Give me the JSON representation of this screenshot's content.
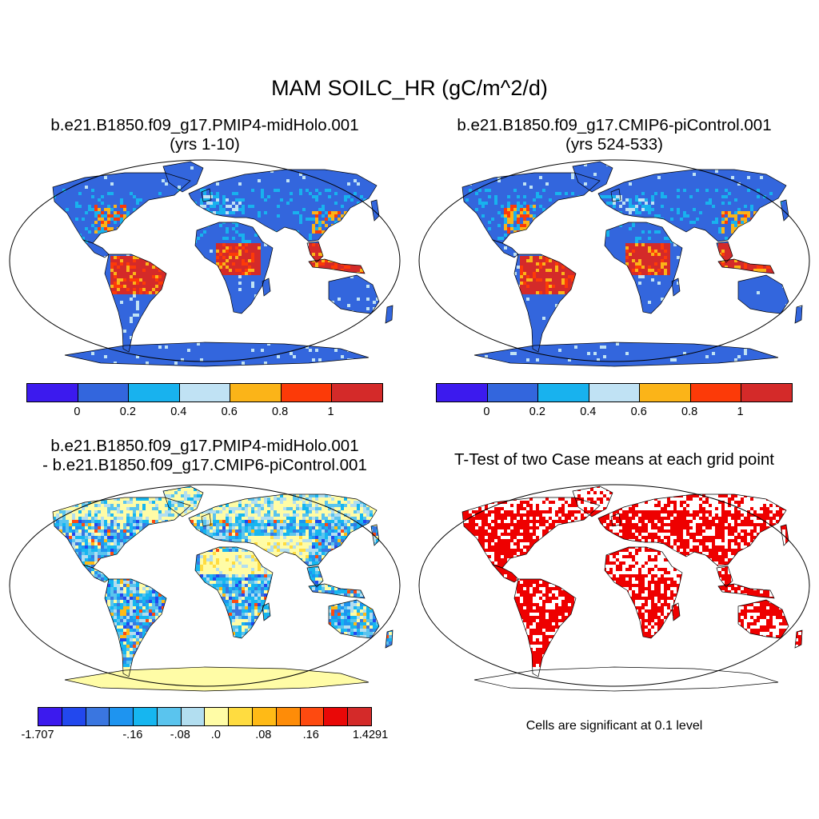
{
  "main_title": "MAM SOILC_HR (gC/m^2/d)",
  "panels": {
    "p1": {
      "line1": "b.e21.B1850.f09_g17.PMIP4-midHolo.001",
      "line2": "(yrs 1-10)"
    },
    "p2": {
      "line1": "b.e21.B1850.f09_g17.CMIP6-piControl.001",
      "line2": "(yrs 524-533)"
    },
    "p3": {
      "line1": "b.e21.B1850.f09_g17.PMIP4-midHolo.001",
      "line2": "- b.e21.B1850.f09_g17.CMIP6-piControl.001"
    },
    "p4": {
      "line1": "T-Test of two Case means at each grid point",
      "note": "Cells are significant at 0.1 level"
    }
  },
  "colorbars": {
    "mean": {
      "colors": [
        "#3c1aee",
        "#3366dd",
        "#18b2ee",
        "#c0e2f4",
        "#fbb418",
        "#fc3a08",
        "#d42a29"
      ],
      "labels": [
        "0",
        "0.2",
        "0.4",
        "0.6",
        "0.8",
        "1"
      ]
    },
    "diff": {
      "colors": [
        "#3c1aee",
        "#2248ee",
        "#3a76e0",
        "#1e94f0",
        "#16b6f0",
        "#5ac4ee",
        "#b2def0",
        "#fffca6",
        "#ffdc40",
        "#ffba16",
        "#fe8c08",
        "#fe4a10",
        "#e90807",
        "#d42a29"
      ],
      "labels": [
        "-1.707",
        "-.16",
        "-.08",
        ".0",
        ".08",
        ".16",
        "1.4291"
      ]
    },
    "signif_color": "#ee0000",
    "land_base_mean": "#3366dd",
    "land_base_diff": "#fffca6"
  }
}
